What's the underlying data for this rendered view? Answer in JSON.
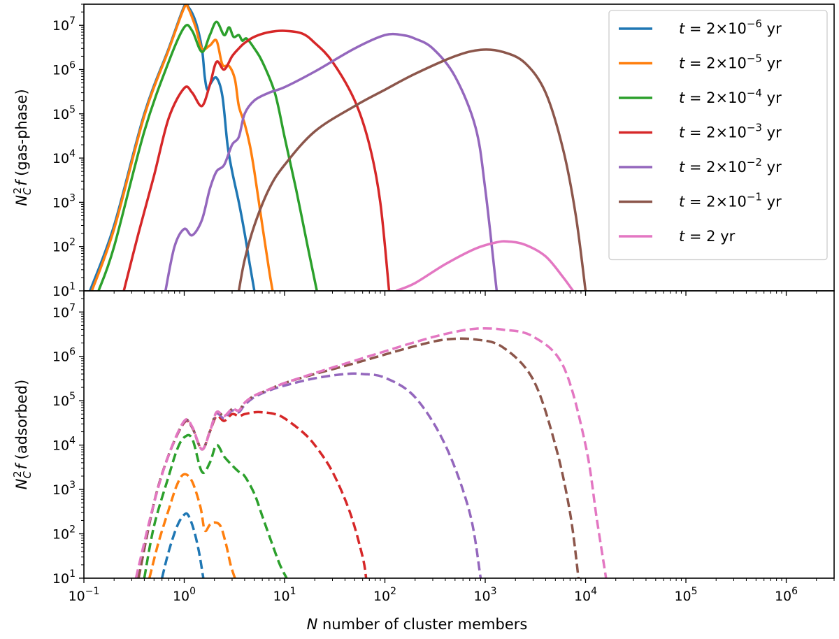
{
  "chart_data": [
    {
      "type": "line",
      "panel": "top",
      "ylabel_html": [
        "N",
        "C",
        "2",
        "f",
        " (gas-phase)"
      ],
      "ylabel": "N_C^2 f (gas-phase)",
      "xscale": "log",
      "yscale": "log",
      "xlim": [
        0.1,
        3000000
      ],
      "ylim": [
        10,
        30000000
      ],
      "yticks": [
        {
          "exp": 1
        },
        {
          "exp": 2
        },
        {
          "exp": 3
        },
        {
          "exp": 4
        },
        {
          "exp": 5
        },
        {
          "exp": 6
        },
        {
          "exp": 7
        }
      ],
      "legend_position": "top-right",
      "series": [
        {
          "name": "t = 2×10⁻⁶ yr",
          "label_prefix": "t",
          "label_mid": " = 2×10",
          "label_exp": "−6",
          "label_suffix": " yr",
          "color": "#1f77b4",
          "style": "solid",
          "x": [
            0.115,
            0.2,
            0.4,
            0.7,
            1.0,
            1.1,
            1.3,
            1.5,
            1.6,
            1.7,
            1.85,
            2.1,
            2.4,
            2.7,
            3.0,
            3.5,
            4.0,
            4.5,
            5.0
          ],
          "y": [
            10,
            300,
            100000,
            3000000,
            27000000,
            26000000,
            12000000,
            3000000,
            700000,
            350000,
            500000,
            650000,
            250000,
            20000,
            5000,
            1000,
            200,
            40,
            10
          ]
        },
        {
          "name": "t = 2×10⁻⁵ yr",
          "label_prefix": "t",
          "label_mid": " = 2×10",
          "label_exp": "−5",
          "label_suffix": " yr",
          "color": "#ff7f0e",
          "style": "solid",
          "x": [
            0.12,
            0.2,
            0.4,
            0.7,
            1.0,
            1.1,
            1.3,
            1.5,
            1.8,
            2.1,
            2.4,
            2.8,
            3.2,
            3.5,
            4.0,
            4.5,
            5.0,
            6.0,
            7.0,
            7.6
          ],
          "y": [
            10,
            250,
            90000,
            2800000,
            25000000,
            24000000,
            9000000,
            3000000,
            3500000,
            4500000,
            1300000,
            1200000,
            600000,
            150000,
            60000,
            20000,
            5000,
            300,
            30,
            10
          ]
        },
        {
          "name": "t = 2×10⁻⁴ yr",
          "label_prefix": "t",
          "label_mid": " = 2×10",
          "label_exp": "−4",
          "label_suffix": " yr",
          "color": "#2ca02c",
          "style": "solid",
          "x": [
            0.14,
            0.2,
            0.4,
            0.7,
            1.0,
            1.2,
            1.5,
            1.8,
            2.1,
            2.5,
            2.8,
            3.1,
            3.5,
            3.8,
            4.2,
            5.0,
            6.0,
            8.0,
            10.0,
            13.0,
            17.0,
            21.0
          ],
          "y": [
            10,
            100,
            40000,
            1500000,
            9000000,
            7500000,
            2500000,
            6000000,
            12000000,
            6000000,
            9000000,
            5500000,
            6000000,
            4500000,
            5000000,
            3000000,
            1500000,
            300000,
            30000,
            2000,
            100,
            10
          ]
        },
        {
          "name": "t = 2×10⁻³ yr",
          "label_prefix": "t",
          "label_mid": " = 2×10",
          "label_exp": "−3",
          "label_suffix": " yr",
          "color": "#d62728",
          "style": "solid",
          "x": [
            0.25,
            0.35,
            0.5,
            0.7,
            1.0,
            1.2,
            1.5,
            1.8,
            2.1,
            2.5,
            3.0,
            3.5,
            4.0,
            5.0,
            7.0,
            10.0,
            15.0,
            20.0,
            30.0,
            50.0,
            70.0,
            90.0,
            110.0
          ],
          "y": [
            10,
            200,
            4000,
            80000,
            380000,
            300000,
            150000,
            450000,
            1500000,
            1000000,
            2000000,
            3000000,
            4000000,
            5500000,
            7000000,
            7500000,
            6500000,
            4000000,
            1500000,
            200000,
            20000,
            1000,
            10
          ]
        },
        {
          "name": "t = 2×10⁻² yr",
          "label_prefix": "t",
          "label_mid": " = 2×10",
          "label_exp": "−2",
          "label_suffix": " yr",
          "color": "#9467bd",
          "style": "solid",
          "x": [
            0.65,
            0.8,
            1.0,
            1.2,
            1.5,
            1.8,
            2.1,
            2.5,
            3.0,
            3.5,
            4.0,
            5.0,
            7.0,
            10.0,
            20.0,
            50.0,
            100.0,
            150.0,
            200.0,
            300.0,
            500.0,
            800.0,
            1000.0,
            1300.0
          ],
          "y": [
            10,
            100,
            250,
            180,
            400,
            2000,
            5000,
            7000,
            20000,
            30000,
            100000,
            200000,
            300000,
            400000,
            900000,
            3000000,
            6000000,
            6000000,
            5000000,
            3000000,
            700000,
            50000,
            2000,
            10
          ]
        },
        {
          "name": "t = 2×10⁻¹ yr",
          "label_prefix": "t",
          "label_mid": " = 2×10",
          "label_exp": "−1",
          "label_suffix": " yr",
          "color": "#8c564b",
          "style": "solid",
          "x": [
            3.5,
            4.0,
            5.0,
            7.0,
            10.0,
            20.0,
            50.0,
            100.0,
            200.0,
            500.0,
            900.0,
            1500.0,
            2500.0,
            4000.0,
            6000.0,
            8000.0,
            10000.0
          ],
          "y": [
            10,
            50,
            300,
            2000,
            7000,
            40000,
            150000,
            350000,
            800000,
            2000000,
            2800000,
            2500000,
            1400000,
            300000,
            15000,
            500,
            10
          ]
        },
        {
          "name": "t = 2 yr",
          "label_prefix": "t",
          "label_mid": " = 2 yr",
          "label_exp": "",
          "label_suffix": "",
          "color": "#e377c2",
          "style": "solid",
          "x": [
            130.0,
            200.0,
            400.0,
            800.0,
            1300.0,
            1700.0,
            2500.0,
            4000.0,
            6000.0,
            7500.0
          ],
          "y": [
            10,
            15,
            40,
            90,
            125,
            130,
            110,
            60,
            20,
            10
          ]
        }
      ]
    },
    {
      "type": "line",
      "panel": "bottom",
      "ylabel_html": [
        "N",
        "C",
        "2",
        "f",
        " (adsorbed)"
      ],
      "ylabel": "N_C^2 f (adsorbed)",
      "xlabel_html": [
        "N",
        " number of cluster members"
      ],
      "xlabel": "N number of cluster members",
      "xscale": "log",
      "yscale": "log",
      "xlim": [
        0.1,
        3000000
      ],
      "ylim": [
        10,
        30000000
      ],
      "xticks": [
        {
          "exp": -1
        },
        {
          "exp": 0
        },
        {
          "exp": 1
        },
        {
          "exp": 2
        },
        {
          "exp": 3
        },
        {
          "exp": 4
        },
        {
          "exp": 5
        },
        {
          "exp": 6
        }
      ],
      "yticks": [
        {
          "exp": 1
        },
        {
          "exp": 2
        },
        {
          "exp": 3
        },
        {
          "exp": 4
        },
        {
          "exp": 5
        },
        {
          "exp": 6
        },
        {
          "exp": 7
        }
      ],
      "series": [
        {
          "name": "t = 2×10⁻⁶ yr",
          "color": "#1f77b4",
          "style": "dashed",
          "x": [
            0.6,
            0.7,
            0.85,
            1.0,
            1.1,
            1.25,
            1.4,
            1.55
          ],
          "y": [
            10,
            40,
            150,
            270,
            260,
            120,
            40,
            10
          ]
        },
        {
          "name": "t = 2×10⁻⁵ yr",
          "color": "#ff7f0e",
          "style": "dashed",
          "x": [
            0.45,
            0.55,
            0.7,
            0.85,
            1.0,
            1.2,
            1.45,
            1.6,
            1.8,
            2.0,
            2.3,
            2.6,
            2.9,
            3.2
          ],
          "y": [
            10,
            60,
            350,
            1300,
            2200,
            1500,
            400,
            120,
            160,
            180,
            150,
            60,
            20,
            10
          ]
        },
        {
          "name": "t = 2×10⁻⁴ yr",
          "color": "#2ca02c",
          "style": "dashed",
          "x": [
            0.4,
            0.5,
            0.7,
            0.85,
            1.0,
            1.2,
            1.5,
            1.8,
            2.1,
            2.5,
            3.0,
            3.5,
            4.0,
            5.0,
            6.0,
            7.5,
            9.0,
            10.5
          ],
          "y": [
            10,
            150,
            2000,
            8000,
            15000,
            14000,
            2500,
            4000,
            10000,
            5500,
            3500,
            2500,
            2000,
            800,
            250,
            60,
            20,
            10
          ]
        },
        {
          "name": "t = 2×10⁻³ yr",
          "color": "#d62728",
          "style": "dashed",
          "x": [
            0.35,
            0.5,
            0.7,
            1.0,
            1.2,
            1.5,
            1.8,
            2.1,
            2.5,
            3.0,
            3.5,
            4.0,
            5.0,
            6.0,
            8.0,
            10.0,
            15.0,
            20.0,
            30.0,
            45.0,
            60.0,
            65.0
          ],
          "y": [
            10,
            500,
            6000,
            32000,
            25000,
            8000,
            20000,
            45000,
            35000,
            50000,
            45000,
            50000,
            55000,
            55000,
            50000,
            40000,
            20000,
            10000,
            2500,
            300,
            30,
            10
          ]
        },
        {
          "name": "t = 2×10⁻² yr",
          "color": "#9467bd",
          "style": "dashed",
          "x": [
            0.35,
            0.5,
            0.7,
            1.0,
            1.2,
            1.5,
            1.8,
            2.1,
            2.5,
            3.0,
            3.5,
            4.0,
            5.0,
            7.0,
            10.0,
            20.0,
            40.0,
            60.0,
            100.0,
            200.0,
            400.0,
            700.0,
            900.0
          ],
          "y": [
            10,
            500,
            6000,
            33000,
            25000,
            8000,
            20000,
            50000,
            40000,
            60000,
            55000,
            80000,
            120000,
            170000,
            220000,
            320000,
            400000,
            400000,
            330000,
            120000,
            10000,
            300,
            10
          ]
        },
        {
          "name": "t = 2×10⁻¹ yr",
          "color": "#8c564b",
          "style": "dashed",
          "x": [
            0.35,
            0.5,
            0.7,
            1.0,
            1.2,
            1.5,
            1.8,
            2.1,
            2.5,
            3.0,
            3.5,
            4.0,
            5.0,
            7.0,
            10.0,
            20.0,
            50.0,
            100.0,
            200.0,
            400.0,
            800.0,
            1500.0,
            3000.0,
            5000.0,
            7000.0,
            8500.0
          ],
          "y": [
            10,
            500,
            6000,
            34000,
            25000,
            8000,
            20000,
            55000,
            45000,
            65000,
            60000,
            90000,
            130000,
            180000,
            250000,
            400000,
            700000,
            1100000,
            1700000,
            2400000,
            2400000,
            1600000,
            300000,
            10000,
            300,
            10
          ]
        },
        {
          "name": "t = 2 yr",
          "color": "#e377c2",
          "style": "dashed",
          "x": [
            0.33,
            0.5,
            0.7,
            1.0,
            1.2,
            1.5,
            1.8,
            2.1,
            2.5,
            3.0,
            3.5,
            4.0,
            5.0,
            7.0,
            10.0,
            20.0,
            50.0,
            100.0,
            200.0,
            400.0,
            800.0,
            1500.0,
            3000.0,
            6000.0,
            10000.0,
            13000.0,
            16000.0
          ],
          "y": [
            10,
            500,
            6000,
            35000,
            26000,
            8000,
            20000,
            55000,
            45000,
            65000,
            60000,
            90000,
            130000,
            180000,
            250000,
            420000,
            800000,
            1300000,
            2100000,
            3200000,
            4200000,
            4000000,
            2800000,
            600000,
            10000,
            200,
            10
          ]
        }
      ]
    }
  ]
}
